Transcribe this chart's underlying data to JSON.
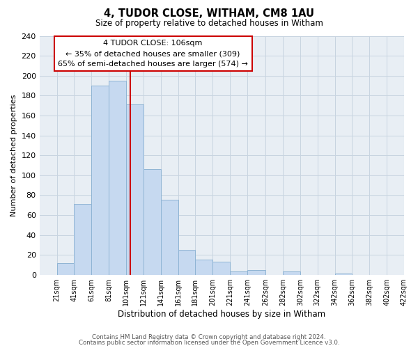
{
  "title": "4, TUDOR CLOSE, WITHAM, CM8 1AU",
  "subtitle": "Size of property relative to detached houses in Witham",
  "xlabel": "Distribution of detached houses by size in Witham",
  "ylabel": "Number of detached properties",
  "bar_labels": [
    "21sqm",
    "41sqm",
    "61sqm",
    "81sqm",
    "101sqm",
    "121sqm",
    "141sqm",
    "161sqm",
    "181sqm",
    "201sqm",
    "221sqm",
    "241sqm",
    "262sqm",
    "282sqm",
    "302sqm",
    "322sqm",
    "342sqm",
    "362sqm",
    "382sqm",
    "402sqm",
    "422sqm"
  ],
  "bar_values": [
    0,
    12,
    71,
    190,
    195,
    171,
    106,
    75,
    25,
    15,
    13,
    3,
    5,
    0,
    3,
    0,
    0,
    1,
    0,
    0,
    0
  ],
  "bar_color": "#c6d9f0",
  "bar_edge_color": "#8fb4d4",
  "grid_color": "#c8d4e0",
  "vline_x": 106,
  "vline_color": "#cc0000",
  "annotation_title": "4 TUDOR CLOSE: 106sqm",
  "annotation_line1": "← 35% of detached houses are smaller (309)",
  "annotation_line2": "65% of semi-detached houses are larger (574) →",
  "annotation_box_facecolor": "#ffffff",
  "annotation_box_edgecolor": "#cc0000",
  "ylim": [
    0,
    240
  ],
  "yticks": [
    0,
    20,
    40,
    60,
    80,
    100,
    120,
    140,
    160,
    180,
    200,
    220,
    240
  ],
  "footer1": "Contains HM Land Registry data © Crown copyright and database right 2024.",
  "footer2": "Contains public sector information licensed under the Open Government Licence v3.0.",
  "bg_color": "#e8eef4",
  "bin_edges": [
    1,
    21,
    41,
    61,
    81,
    101,
    121,
    141,
    161,
    181,
    201,
    221,
    241,
    262,
    282,
    302,
    322,
    342,
    362,
    382,
    402,
    422
  ]
}
